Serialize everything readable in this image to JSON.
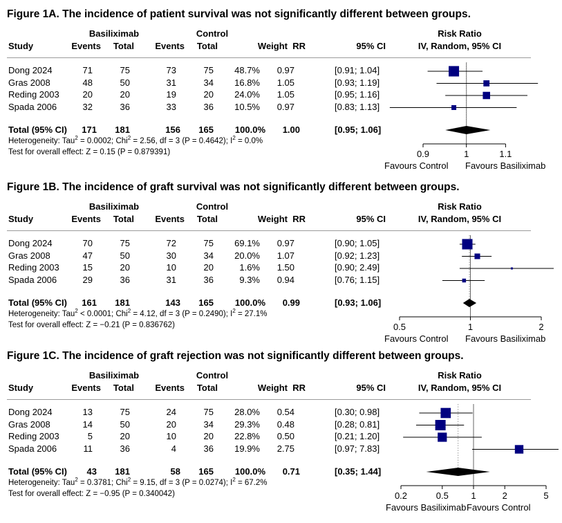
{
  "figures": [
    {
      "title": "Figure 1A. The incidence of patient survival was not significantly different between groups.",
      "headers": {
        "group_treat": "Basiliximab",
        "group_ctrl": "Control",
        "study": "Study",
        "events": "Events",
        "total": "Total",
        "weight": "Weight",
        "rr": "RR",
        "ci": "95% CI",
        "plot_title": "Risk Ratio",
        "plot_sub": "IV, Random, 95% CI"
      },
      "rows": [
        {
          "study": "Dong 2024",
          "e1": "71",
          "n1": "75",
          "e2": "73",
          "n2": "75",
          "weight": "48.7%",
          "rr": "0.97",
          "ci": "[0.91; 1.04]"
        },
        {
          "study": "Gras 2008",
          "e1": "48",
          "n1": "50",
          "e2": "31",
          "n2": "34",
          "weight": "16.8%",
          "rr": "1.05",
          "ci": "[0.93; 1.19]"
        },
        {
          "study": "Reding 2003",
          "e1": "20",
          "n1": "20",
          "e2": "19",
          "n2": "20",
          "weight": "24.0%",
          "rr": "1.05",
          "ci": "[0.95; 1.16]"
        },
        {
          "study": "Spada 2006",
          "e1": "32",
          "n1": "36",
          "e2": "33",
          "n2": "36",
          "weight": "10.5%",
          "rr": "0.97",
          "ci": "[0.83; 1.13]"
        }
      ],
      "total": {
        "label": "Total (95% CI)",
        "e1": "171",
        "n1": "181",
        "e2": "156",
        "n2": "165",
        "weight": "100.0%",
        "rr": "1.00",
        "ci": "[0.95; 1.06]"
      },
      "heterogeneity": {
        "a": "Heterogeneity: Tau",
        "b": " = 0.0002; Chi",
        "c": " = 2.56, df = 3 (P = 0.4642); I",
        "d": " = 0.0%"
      },
      "overall": "Test for overall effect: Z = 0.15 (P = 0.879391)",
      "favours_left": "Favours Control",
      "favours_right": "Favours Basiliximab"
    },
    {
      "title": "Figure 1B. The incidence of graft survival was not significantly different between groups.",
      "headers": {
        "group_treat": "Basiliximab",
        "group_ctrl": "Control",
        "study": "Study",
        "events": "Events",
        "total": "Total",
        "weight": "Weight",
        "rr": "RR",
        "ci": "95% CI",
        "plot_title": "Risk Ratio",
        "plot_sub": "IV, Random, 95% CI"
      },
      "rows": [
        {
          "study": "Dong 2024",
          "e1": "70",
          "n1": "75",
          "e2": "72",
          "n2": "75",
          "weight": "69.1%",
          "rr": "0.97",
          "ci": "[0.90; 1.05]"
        },
        {
          "study": "Gras 2008",
          "e1": "47",
          "n1": "50",
          "e2": "30",
          "n2": "34",
          "weight": "20.0%",
          "rr": "1.07",
          "ci": "[0.92; 1.23]"
        },
        {
          "study": "Reding 2003",
          "e1": "15",
          "n1": "20",
          "e2": "10",
          "n2": "20",
          "weight": "1.6%",
          "rr": "1.50",
          "ci": "[0.90; 2.49]"
        },
        {
          "study": "Spada 2006",
          "e1": "29",
          "n1": "36",
          "e2": "31",
          "n2": "36",
          "weight": "9.3%",
          "rr": "0.94",
          "ci": "[0.76; 1.15]"
        }
      ],
      "total": {
        "label": "Total (95% CI)",
        "e1": "161",
        "n1": "181",
        "e2": "143",
        "n2": "165",
        "weight": "100.0%",
        "rr": "0.99",
        "ci": "[0.93; 1.06]"
      },
      "heterogeneity": {
        "a": "Heterogeneity: Tau",
        "b": " < 0.0001; Chi",
        "c": " = 4.12, df = 3 (P = 0.2490); I",
        "d": " = 27.1%"
      },
      "overall": "Test for overall effect: Z = −0.21 (P = 0.836762)",
      "favours_left": "Favours Control",
      "favours_right": "Favours Basiliximab"
    },
    {
      "title": "Figure 1C. The incidence of graft rejection was not significantly different between groups.",
      "headers": {
        "group_treat": "Basiliximab",
        "group_ctrl": "Control",
        "study": "Study",
        "events": "Events",
        "total": "Total",
        "weight": "Weight",
        "rr": "RR",
        "ci": "95% CI",
        "plot_title": "Risk Ratio",
        "plot_sub": "IV, Random, 95% CI"
      },
      "rows": [
        {
          "study": "Dong 2024",
          "e1": "13",
          "n1": "75",
          "e2": "24",
          "n2": "75",
          "weight": "28.0%",
          "rr": "0.54",
          "ci": "[0.30; 0.98]"
        },
        {
          "study": "Gras 2008",
          "e1": "14",
          "n1": "50",
          "e2": "20",
          "n2": "34",
          "weight": "29.3%",
          "rr": "0.48",
          "ci": "[0.28; 0.81]"
        },
        {
          "study": "Reding 2003",
          "e1": "5",
          "n1": "20",
          "e2": "10",
          "n2": "20",
          "weight": "22.8%",
          "rr": "0.50",
          "ci": "[0.21; 1.20]"
        },
        {
          "study": "Spada 2006",
          "e1": "11",
          "n1": "36",
          "e2": "4",
          "n2": "36",
          "weight": "19.9%",
          "rr": "2.75",
          "ci": "[0.97; 7.83]"
        }
      ],
      "total": {
        "label": "Total (95% CI)",
        "e1": "43",
        "n1": "181",
        "e2": "58",
        "n2": "165",
        "weight": "100.0%",
        "rr": "0.71",
        "ci": "[0.35; 1.44]"
      },
      "heterogeneity": {
        "a": "Heterogeneity: Tau",
        "b": " = 0.3781; Chi",
        "c": " = 9.15, df = 3 (P = 0.0274); I",
        "d": " = 67.2%"
      },
      "overall": "Test for overall effect: Z = −0.95 (P = 0.340042)",
      "favours_left": "Favours Basiliximab",
      "favours_right": "Favours Control"
    }
  ],
  "chart_data": [
    {
      "type": "forest",
      "scale": "log",
      "xlim": [
        0.85,
        1.22
      ],
      "ticks": [
        0.9,
        1,
        1.1
      ],
      "tick_labels": [
        "0.9",
        "1",
        "1.1"
      ],
      "ref_line": 1,
      "pooled_line": 1.0,
      "studies": [
        {
          "name": "Dong 2024",
          "rr": 0.97,
          "lo": 0.91,
          "hi": 1.04,
          "weight": 48.7
        },
        {
          "name": "Gras 2008",
          "rr": 1.05,
          "lo": 0.93,
          "hi": 1.19,
          "weight": 16.8
        },
        {
          "name": "Reding 2003",
          "rr": 1.05,
          "lo": 0.95,
          "hi": 1.16,
          "weight": 24.0
        },
        {
          "name": "Spada 2006",
          "rr": 0.97,
          "lo": 0.83,
          "hi": 1.13,
          "weight": 10.5
        }
      ],
      "pooled": {
        "rr": 1.0,
        "lo": 0.95,
        "hi": 1.06
      },
      "colors": {
        "marker": "#000080",
        "diamond": "#000000",
        "line": "#000000"
      }
    },
    {
      "type": "forest",
      "scale": "log",
      "xlim": [
        0.5,
        2
      ],
      "ticks": [
        0.5,
        1,
        2
      ],
      "tick_labels": [
        "0.5",
        "1",
        "2"
      ],
      "ref_line": 1,
      "pooled_line": 0.99,
      "studies": [
        {
          "name": "Dong 2024",
          "rr": 0.97,
          "lo": 0.9,
          "hi": 1.05,
          "weight": 69.1
        },
        {
          "name": "Gras 2008",
          "rr": 1.07,
          "lo": 0.92,
          "hi": 1.23,
          "weight": 20.0
        },
        {
          "name": "Reding 2003",
          "rr": 1.5,
          "lo": 0.9,
          "hi": 2.49,
          "weight": 1.6
        },
        {
          "name": "Spada 2006",
          "rr": 0.94,
          "lo": 0.76,
          "hi": 1.15,
          "weight": 9.3
        }
      ],
      "pooled": {
        "rr": 0.99,
        "lo": 0.93,
        "hi": 1.06
      },
      "colors": {
        "marker": "#000080",
        "diamond": "#000000",
        "line": "#000000"
      }
    },
    {
      "type": "forest",
      "scale": "log",
      "xlim": [
        0.2,
        5
      ],
      "ticks": [
        0.2,
        0.5,
        1,
        2,
        5
      ],
      "tick_labels": [
        "0.2",
        "0.5",
        "1",
        "2",
        "5"
      ],
      "ref_line": 1,
      "pooled_line": 0.71,
      "studies": [
        {
          "name": "Dong 2024",
          "rr": 0.54,
          "lo": 0.3,
          "hi": 0.98,
          "weight": 28.0
        },
        {
          "name": "Gras 2008",
          "rr": 0.48,
          "lo": 0.28,
          "hi": 0.81,
          "weight": 29.3
        },
        {
          "name": "Reding 2003",
          "rr": 0.5,
          "lo": 0.21,
          "hi": 1.2,
          "weight": 22.8
        },
        {
          "name": "Spada 2006",
          "rr": 2.75,
          "lo": 0.97,
          "hi": 7.83,
          "weight": 19.9
        }
      ],
      "pooled": {
        "rr": 0.71,
        "lo": 0.35,
        "hi": 1.44
      },
      "colors": {
        "marker": "#000080",
        "diamond": "#000000",
        "line": "#000000"
      }
    }
  ]
}
